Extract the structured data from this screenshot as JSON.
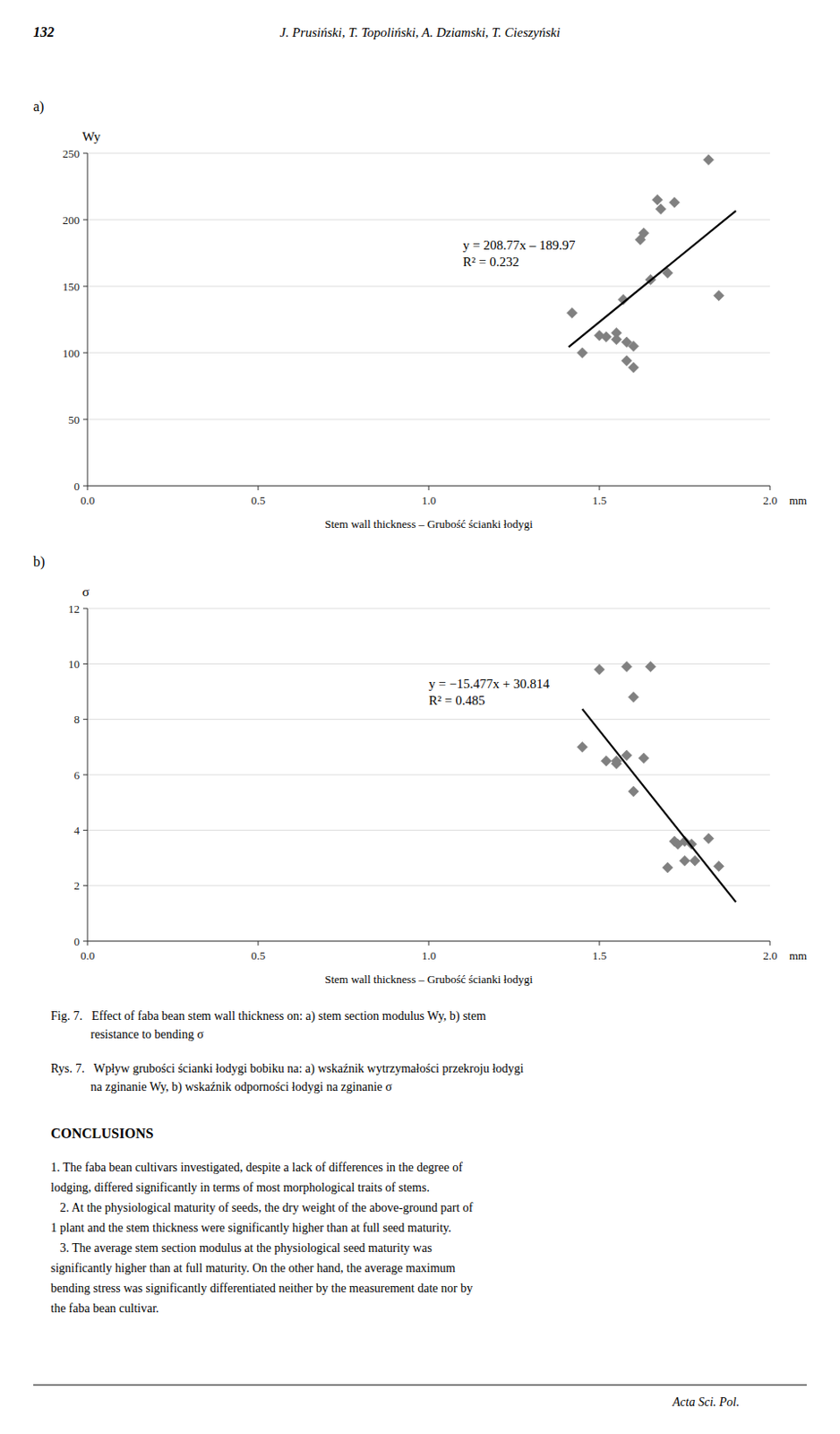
{
  "header": {
    "page_number": "132",
    "authors": "J. Prusiński, T. Topoliński, A. Dziamski, T. Cieszyński"
  },
  "chart_data": [
    {
      "type": "scatter",
      "label": "a)",
      "y_label": "Wy",
      "x_label": "Stem wall thickness – Grubość ścianki łodygi",
      "x_unit": "mm",
      "xlim": [
        0,
        2
      ],
      "ylim": [
        0,
        250
      ],
      "xticks": [
        {
          "value": 0,
          "label": "0.0"
        },
        0.5,
        {
          "value": 1,
          "label": "1.0"
        },
        1.5,
        {
          "value": 2,
          "label": "2.0"
        }
      ],
      "yticks": [
        0,
        50,
        100,
        150,
        200,
        250
      ],
      "grid": true,
      "series": [
        {
          "type": "scatter",
          "marker": "diamond",
          "color": "#808080",
          "x": [
            1.42,
            1.45,
            1.5,
            1.52,
            1.55,
            1.55,
            1.57,
            1.58,
            1.58,
            1.6,
            1.6,
            1.62,
            1.63,
            1.65,
            1.67,
            1.68,
            1.7,
            1.72,
            1.82,
            1.85
          ],
          "values": [
            130,
            100,
            113,
            112,
            115,
            110,
            140,
            108,
            94,
            89,
            105,
            185,
            190,
            155,
            215,
            208,
            160,
            213,
            245,
            143
          ]
        },
        {
          "type": "line",
          "color": "#000000",
          "x": [
            1.41,
            1.9
          ],
          "values": [
            104.3957,
            206.693
          ]
        }
      ],
      "annotations": [
        {
          "text": [
            "y = 208.77x – 189.97",
            "R² = 0.232"
          ],
          "x": 1.1,
          "y": 175
        }
      ]
    },
    {
      "type": "scatter",
      "label": "b)",
      "y_label": "σ",
      "x_label": "Stem wall thickness – Grubość ścianki łodygi",
      "x_unit": "mm",
      "xlim": [
        0,
        2
      ],
      "ylim": [
        0,
        12
      ],
      "xticks": [
        {
          "value": 0,
          "label": "0.0"
        },
        0.5,
        {
          "value": 1,
          "label": "1.0"
        },
        1.5,
        {
          "value": 2,
          "label": "2.0"
        }
      ],
      "yticks": [
        0,
        2,
        4,
        6,
        8,
        10,
        12
      ],
      "grid": true,
      "series": [
        {
          "type": "scatter",
          "marker": "diamond",
          "color": "#808080",
          "x": [
            1.45,
            1.5,
            1.52,
            1.55,
            1.55,
            1.58,
            1.58,
            1.6,
            1.6,
            1.63,
            1.65,
            1.7,
            1.72,
            1.73,
            1.75,
            1.75,
            1.77,
            1.78,
            1.82,
            1.85
          ],
          "values": [
            7.0,
            9.8,
            6.5,
            6.4,
            6.5,
            6.7,
            9.9,
            8.8,
            5.4,
            6.6,
            9.9,
            2.65,
            3.6,
            3.5,
            3.6,
            2.9,
            3.5,
            2.9,
            3.7,
            2.7
          ]
        },
        {
          "type": "line",
          "color": "#000000",
          "x": [
            1.45,
            1.9
          ],
          "values": [
            8.37235,
            1.4077
          ]
        }
      ],
      "annotations": [
        {
          "text": [
            "y = −15.477x + 30.814",
            "R² = 0.485"
          ],
          "x": 1.0,
          "y": 9.0
        }
      ]
    }
  ],
  "caption_en": "Fig. 7.   Effect of faba bean stem wall thickness on: a) stem section modulus Wy, b) stem\n             resistance to bending σ",
  "caption_pl": "Rys. 7.   Wpływ grubości ścianki łodygi bobiku na: a) wskaźnik wytrzymałości przekroju łodygi\n             na zginanie Wy, b) wskaźnik odporności łodygi na zginanie σ",
  "conclusions_title": "CONCLUSIONS",
  "conclusions_text": "1. The faba bean cultivars investigated, despite a lack of differences in the degree of\nlodging, differed significantly in terms of most morphological traits of stems.\n   2. At the physiological maturity of seeds, the dry weight of the above-ground part of\n1 plant and the stem thickness were significantly higher than at full seed maturity.\n   3. The average stem section modulus at the physiological seed maturity was\nsignificantly higher than at full maturity. On the other hand, the average maximum\nbending stress was significantly differentiated neither by the measurement date nor by\nthe faba bean cultivar.",
  "footer": "Acta Sci. Pol."
}
